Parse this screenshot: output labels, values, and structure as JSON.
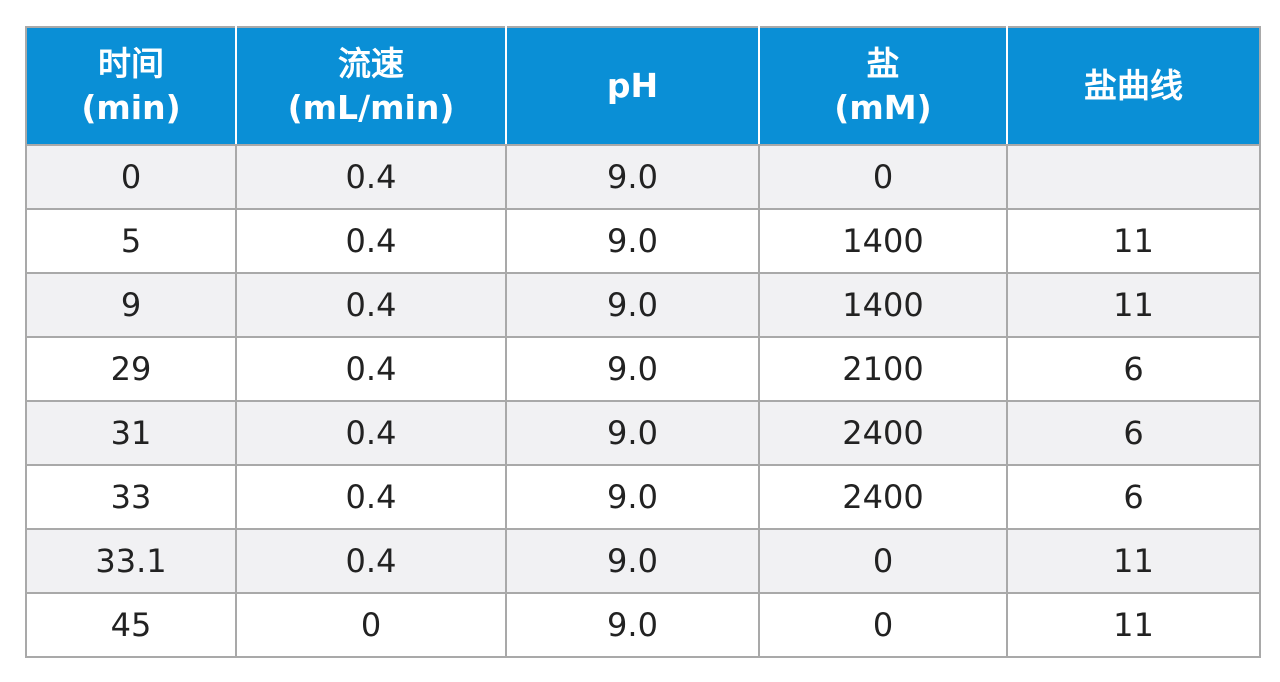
{
  "table": {
    "header_color": "#0a8fd6",
    "headers": [
      {
        "line1": "时间",
        "line2": "(min)"
      },
      {
        "line1": "流速",
        "line2": "(mL/min)"
      },
      {
        "line1": "pH",
        "line2": ""
      },
      {
        "line1": "盐",
        "line2": "(mM)"
      },
      {
        "line1": "盐曲线",
        "line2": ""
      }
    ],
    "rows": [
      [
        "0",
        "0.4",
        "9.0",
        "0",
        ""
      ],
      [
        "5",
        "0.4",
        "9.0",
        "1400",
        "11"
      ],
      [
        "9",
        "0.4",
        "9.0",
        "1400",
        "11"
      ],
      [
        "29",
        "0.4",
        "9.0",
        "2100",
        "6"
      ],
      [
        "31",
        "0.4",
        "9.0",
        "2400",
        "6"
      ],
      [
        "33",
        "0.4",
        "9.0",
        "2400",
        "6"
      ],
      [
        "33.1",
        "0.4",
        "9.0",
        "0",
        "11"
      ],
      [
        "45",
        "0",
        "9.0",
        "0",
        "11"
      ]
    ]
  }
}
